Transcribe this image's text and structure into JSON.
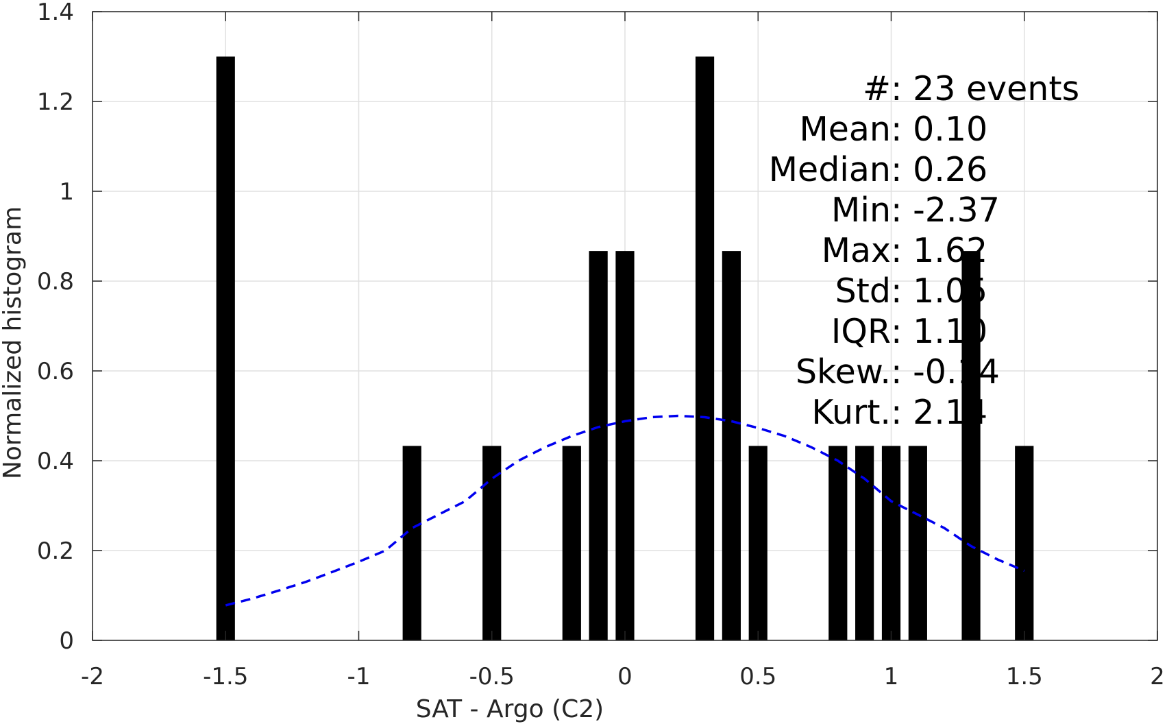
{
  "chart_data": {
    "type": "bar",
    "xlabel": "SAT - Argo (C2)",
    "ylabel": "Normalized histogram",
    "xlim": [
      -2,
      2
    ],
    "ylim": [
      0,
      1.4
    ],
    "xticks": [
      -2,
      -1.5,
      -1,
      -0.5,
      0,
      0.5,
      1,
      1.5,
      2
    ],
    "xtick_labels": [
      "-2",
      "-1.5",
      "-1",
      "-0.5",
      "0",
      "0.5",
      "1",
      "1.5",
      "2"
    ],
    "yticks": [
      0,
      0.2,
      0.4,
      0.6,
      0.8,
      1,
      1.2,
      1.4
    ],
    "ytick_labels": [
      "0",
      "0.2",
      "0.4",
      "0.6",
      "0.8",
      "1",
      "1.2",
      "1.4"
    ],
    "grid": true,
    "bar_color": "#000000",
    "bar_width": 0.07,
    "bins": [
      {
        "x": -1.5,
        "y": 1.3
      },
      {
        "x": -0.8,
        "y": 0.433
      },
      {
        "x": -0.5,
        "y": 0.433
      },
      {
        "x": -0.2,
        "y": 0.433
      },
      {
        "x": -0.1,
        "y": 0.867
      },
      {
        "x": 0.0,
        "y": 0.867
      },
      {
        "x": 0.3,
        "y": 1.3
      },
      {
        "x": 0.4,
        "y": 0.867
      },
      {
        "x": 0.5,
        "y": 0.433
      },
      {
        "x": 0.8,
        "y": 0.433
      },
      {
        "x": 0.9,
        "y": 0.433
      },
      {
        "x": 1.0,
        "y": 0.433
      },
      {
        "x": 1.1,
        "y": 0.433
      },
      {
        "x": 1.3,
        "y": 0.867
      },
      {
        "x": 1.5,
        "y": 0.433
      }
    ],
    "fit_curve": {
      "style": "dashed",
      "color": "#0000ee",
      "x": [
        -1.5,
        -1.4,
        -1.3,
        -1.2,
        -1.1,
        -1.0,
        -0.9,
        -0.8,
        -0.7,
        -0.6,
        -0.5,
        -0.4,
        -0.3,
        -0.2,
        -0.1,
        0.0,
        0.1,
        0.2,
        0.3,
        0.4,
        0.5,
        0.6,
        0.7,
        0.8,
        0.9,
        1.0,
        1.1,
        1.2,
        1.3,
        1.4,
        1.5
      ],
      "y": [
        0.078,
        0.093,
        0.111,
        0.13,
        0.152,
        0.175,
        0.2,
        0.25,
        0.28,
        0.31,
        0.36,
        0.4,
        0.43,
        0.455,
        0.475,
        0.488,
        0.497,
        0.5,
        0.497,
        0.488,
        0.473,
        0.455,
        0.43,
        0.4,
        0.36,
        0.31,
        0.28,
        0.25,
        0.21,
        0.18,
        0.155
      ]
    },
    "stats": [
      {
        "label": "#  ",
        "value": ": 23 events"
      },
      {
        "label": "Mean ",
        "value": ": 0.10"
      },
      {
        "label": "Median ",
        "value": ": 0.26"
      },
      {
        "label": "Min ",
        "value": ": -2.37"
      },
      {
        "label": "Max ",
        "value": ": 1.62"
      },
      {
        "label": "Std ",
        "value": ": 1.05"
      },
      {
        "label": "IQR ",
        "value": ": 1.10"
      },
      {
        "label": "Skew. ",
        "value": ": -0.14"
      },
      {
        "label": "Kurt. ",
        "value": ": 2.14"
      }
    ]
  }
}
